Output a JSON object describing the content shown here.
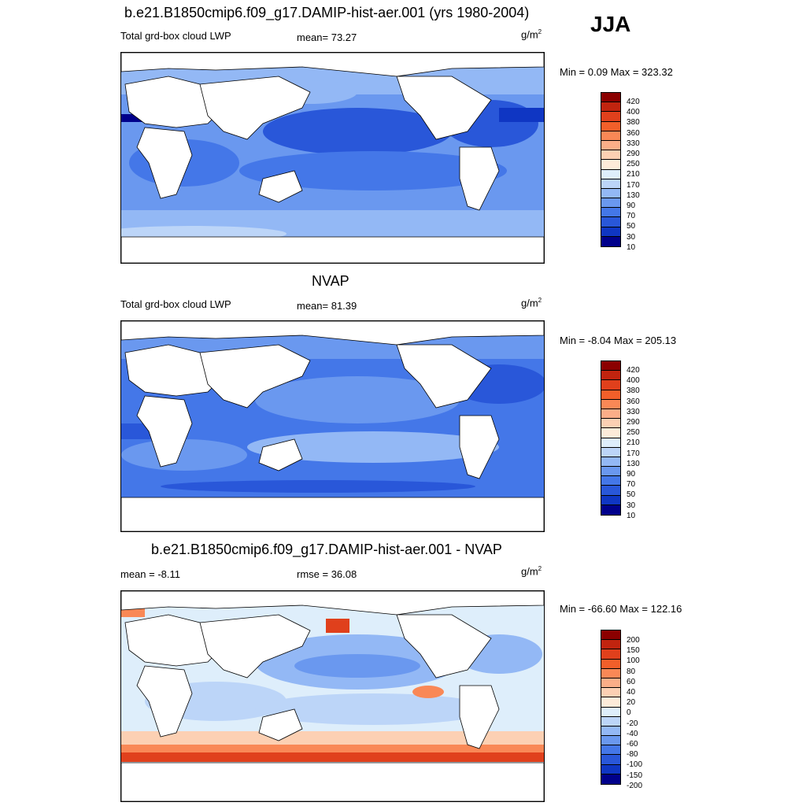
{
  "season": "JJA",
  "palettes": {
    "abs": [
      "#8b0000",
      "#c1240f",
      "#e0401c",
      "#f25f2a",
      "#f98856",
      "#fbae88",
      "#fcd0b3",
      "#fdebd9",
      "#deeefb",
      "#bcd5f8",
      "#93b8f5",
      "#6a98ef",
      "#4477e8",
      "#2957d9",
      "#0f36c3",
      "#00008b"
    ],
    "diff": [
      "#8b0000",
      "#c1240f",
      "#e0401c",
      "#f25f2a",
      "#f98856",
      "#fbae88",
      "#fcd0b3",
      "#fdebd9",
      "#deeefb",
      "#bcd5f8",
      "#93b8f5",
      "#6a98ef",
      "#4477e8",
      "#2957d9",
      "#0f36c3",
      "#00008b"
    ]
  },
  "panels": [
    {
      "title": "b.e21.B1850cmip6.f09_g17.DAMIP-hist-aer.001 (yrs 1980-2004)",
      "left_label": "Total grd-box cloud LWP",
      "mid_label": "mean=  73.27",
      "unit_base": "g/m",
      "unit_exp": "2",
      "minmax": "Min =   0.09 Max = 323.32",
      "levels": [
        "420",
        "400",
        "380",
        "360",
        "330",
        "290",
        "250",
        "210",
        "170",
        "130",
        "90",
        "70",
        "50",
        "30",
        "10"
      ]
    },
    {
      "title": "NVAP",
      "left_label": "Total grd-box cloud LWP",
      "mid_label": "mean=  81.39",
      "unit_base": "g/m",
      "unit_exp": "2",
      "minmax": "Min =  -8.04 Max = 205.13",
      "levels": [
        "420",
        "400",
        "380",
        "360",
        "330",
        "290",
        "250",
        "210",
        "170",
        "130",
        "90",
        "70",
        "50",
        "30",
        "10"
      ]
    },
    {
      "title": "b.e21.B1850cmip6.f09_g17.DAMIP-hist-aer.001 - NVAP",
      "left_label": "mean =  -8.11",
      "mid_label": "rmse =  36.08",
      "unit_base": "g/m",
      "unit_exp": "2",
      "minmax": "Min = -66.60 Max = 122.16",
      "levels": [
        "200",
        "150",
        "100",
        "80",
        "60",
        "40",
        "20",
        "0",
        "-20",
        "-40",
        "-60",
        "-80",
        "-100",
        "-150",
        "-200"
      ]
    }
  ]
}
